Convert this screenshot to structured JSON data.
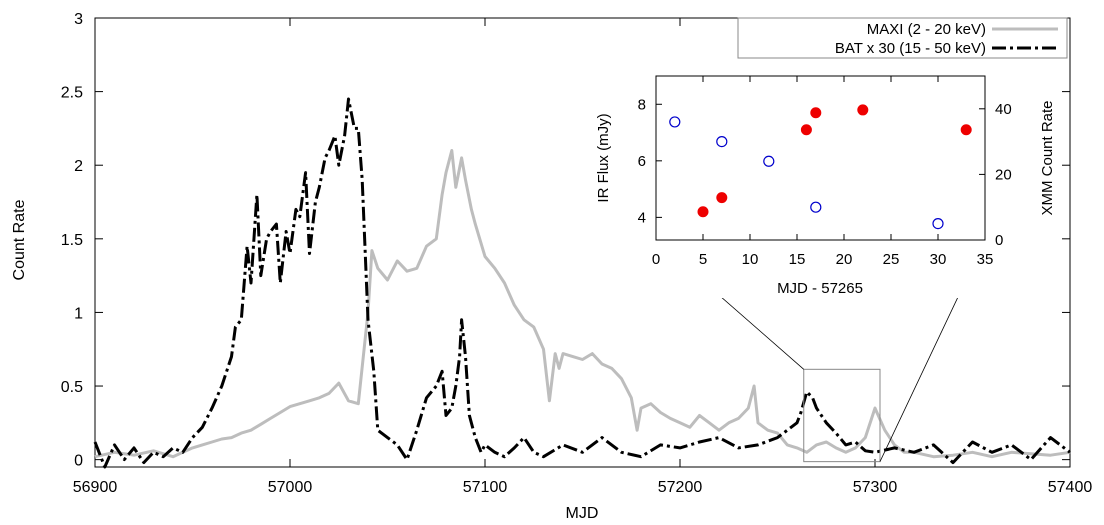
{
  "chart_data": [
    {
      "type": "line",
      "xlabel": "MJD",
      "ylabel": "Count Rate",
      "xlim": [
        56900,
        57400
      ],
      "ylim": [
        -0.05,
        3
      ],
      "xticks": [
        "56900",
        "57000",
        "57100",
        "57200",
        "57300",
        "57400"
      ],
      "yticks": [
        "0",
        "0.5",
        "1",
        "1.5",
        "2",
        "2.5",
        "3"
      ],
      "legend_position": "top-right",
      "series": [
        {
          "name": "MAXI  (2 - 20 keV)",
          "color": "#bdbdbd",
          "style": "solid",
          "x": [
            56900,
            56910,
            56920,
            56930,
            56940,
            56945,
            56950,
            56955,
            56960,
            56965,
            56970,
            56975,
            56980,
            56985,
            56990,
            56995,
            57000,
            57005,
            57010,
            57015,
            57020,
            57025,
            57030,
            57035,
            57040,
            57042,
            57045,
            57050,
            57055,
            57060,
            57065,
            57070,
            57075,
            57078,
            57080,
            57083,
            57085,
            57088,
            57090,
            57093,
            57095,
            57100,
            57105,
            57110,
            57115,
            57120,
            57125,
            57130,
            57133,
            57136,
            57138,
            57140,
            57145,
            57150,
            57155,
            57160,
            57165,
            57170,
            57175,
            57178,
            57180,
            57185,
            57190,
            57195,
            57200,
            57205,
            57210,
            57215,
            57220,
            57225,
            57230,
            57235,
            57238,
            57240,
            57245,
            57250,
            57255,
            57260,
            57265,
            57270,
            57275,
            57280,
            57285,
            57290,
            57295,
            57300,
            57305,
            57310,
            57315,
            57320,
            57330,
            57340,
            57350,
            57360,
            57370,
            57380,
            57390,
            57400
          ],
          "y": [
            0.02,
            0.05,
            0.03,
            0.06,
            0.02,
            0.05,
            0.08,
            0.1,
            0.12,
            0.14,
            0.15,
            0.18,
            0.2,
            0.24,
            0.28,
            0.32,
            0.36,
            0.38,
            0.4,
            0.42,
            0.45,
            0.52,
            0.4,
            0.38,
            1.0,
            1.42,
            1.3,
            1.22,
            1.35,
            1.28,
            1.3,
            1.45,
            1.5,
            1.8,
            1.95,
            2.1,
            1.85,
            2.05,
            1.9,
            1.7,
            1.6,
            1.38,
            1.3,
            1.2,
            1.05,
            0.95,
            0.9,
            0.75,
            0.4,
            0.72,
            0.62,
            0.72,
            0.7,
            0.68,
            0.72,
            0.65,
            0.62,
            0.55,
            0.42,
            0.2,
            0.35,
            0.38,
            0.32,
            0.28,
            0.25,
            0.22,
            0.3,
            0.25,
            0.2,
            0.25,
            0.28,
            0.35,
            0.5,
            0.25,
            0.2,
            0.18,
            0.1,
            0.08,
            0.05,
            0.1,
            0.12,
            0.08,
            0.05,
            0.08,
            0.15,
            0.35,
            0.2,
            0.1,
            0.05,
            0.05,
            0.02,
            0.03,
            0.05,
            0.02,
            0.05,
            0.04,
            0.03,
            0.05
          ]
        },
        {
          "name": "BAT x 30 (15 - 50 keV)",
          "color": "#000000",
          "style": "dash-dot",
          "x": [
            56900,
            56905,
            56910,
            56915,
            56920,
            56925,
            56930,
            56935,
            56940,
            56945,
            56950,
            56955,
            56960,
            56965,
            56970,
            56972,
            56975,
            56978,
            56980,
            56983,
            56985,
            56988,
            56990,
            56993,
            56995,
            56998,
            57000,
            57003,
            57005,
            57008,
            57010,
            57013,
            57015,
            57018,
            57020,
            57023,
            57025,
            57028,
            57030,
            57033,
            57035,
            57037,
            57040,
            57043,
            57045,
            57050,
            57055,
            57060,
            57065,
            57070,
            57075,
            57078,
            57080,
            57083,
            57085,
            57087,
            57088,
            57090,
            57092,
            57095,
            57098,
            57100,
            57105,
            57110,
            57115,
            57120,
            57125,
            57130,
            57140,
            57150,
            57160,
            57170,
            57180,
            57190,
            57200,
            57210,
            57220,
            57230,
            57240,
            57250,
            57255,
            57260,
            57262,
            57265,
            57268,
            57270,
            57275,
            57280,
            57285,
            57290,
            57295,
            57300,
            57310,
            57320,
            57330,
            57340,
            57350,
            57360,
            57370,
            57380,
            57390,
            57400
          ],
          "y": [
            0.12,
            -0.05,
            0.1,
            0.0,
            0.08,
            -0.02,
            0.05,
            0.02,
            0.08,
            0.05,
            0.15,
            0.22,
            0.35,
            0.5,
            0.7,
            0.9,
            0.95,
            1.45,
            1.2,
            1.8,
            1.25,
            1.5,
            1.55,
            1.6,
            1.2,
            1.55,
            1.4,
            1.7,
            1.65,
            1.95,
            1.4,
            1.75,
            1.85,
            2.05,
            2.1,
            2.2,
            2.0,
            2.2,
            2.45,
            2.25,
            2.25,
            1.9,
            0.95,
            0.6,
            0.2,
            0.15,
            0.1,
            0.0,
            0.2,
            0.42,
            0.5,
            0.6,
            0.3,
            0.35,
            0.5,
            0.7,
            0.95,
            0.7,
            0.3,
            0.15,
            0.05,
            0.1,
            0.05,
            0.02,
            0.08,
            0.15,
            0.05,
            0.02,
            0.1,
            0.05,
            0.15,
            0.05,
            0.02,
            0.1,
            0.08,
            0.12,
            0.15,
            0.08,
            0.1,
            0.15,
            0.2,
            0.25,
            0.32,
            0.46,
            0.42,
            0.35,
            0.25,
            0.18,
            0.1,
            0.12,
            0.06,
            0.05,
            0.08,
            0.05,
            0.1,
            -0.02,
            0.12,
            0.05,
            0.1,
            0.0,
            0.15,
            0.05
          ]
        }
      ],
      "zoom_box": {
        "x": [
          57265,
          57300
        ],
        "y": [
          0.0,
          0.6
        ]
      }
    },
    {
      "type": "scatter",
      "xlabel": "MJD - 57265",
      "ylabel": "IR Flux (mJy)",
      "y2label": "XMM Count Rate",
      "xlim": [
        0,
        35
      ],
      "ylim": [
        3.2,
        9
      ],
      "y2lim": [
        0,
        50
      ],
      "xticks": [
        "0",
        "5",
        "10",
        "15",
        "20",
        "25",
        "30",
        "35"
      ],
      "yticks": [
        "4",
        "6",
        "8"
      ],
      "y2ticks": [
        "0",
        "20",
        "40"
      ],
      "series": [
        {
          "marker": "filled-circle",
          "color": "#ee0000",
          "axis": "left",
          "x": [
            5,
            7,
            16,
            17,
            22,
            33
          ],
          "y": [
            4.2,
            4.7,
            7.1,
            7.7,
            7.8,
            7.1
          ]
        },
        {
          "marker": "open-circle",
          "color": "#0000cc",
          "axis": "right",
          "x": [
            2,
            7,
            12,
            17,
            30
          ],
          "y": [
            36,
            30,
            24,
            10,
            5
          ]
        }
      ]
    }
  ]
}
